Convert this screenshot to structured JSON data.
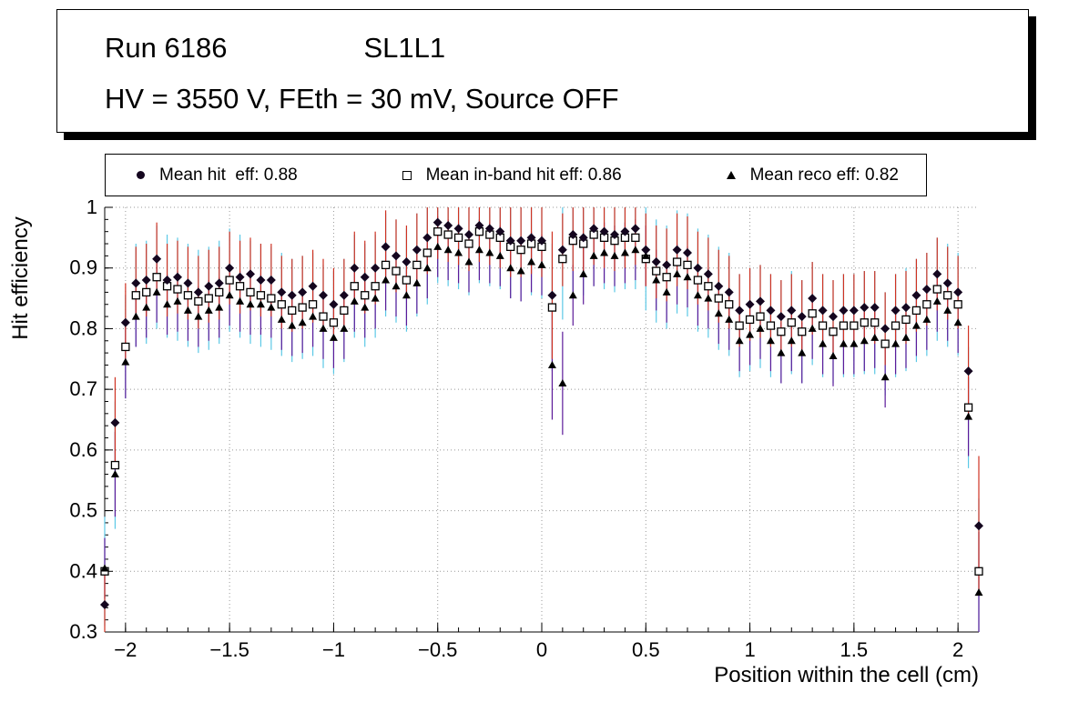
{
  "header": {
    "run": "Run 6186",
    "chamber": "SL1L1",
    "conditions": "HV = 3550 V, FEth = 30 mV, Source OFF"
  },
  "legend": [
    {
      "label": "Mean hit  eff: 0.88",
      "marker": "filled-circle",
      "color": "#14061f"
    },
    {
      "label": "Mean in-band hit eff: 0.86",
      "marker": "open-square",
      "color": "#000000"
    },
    {
      "label": "Mean reco eff: 0.82",
      "marker": "filled-triangle",
      "color": "#000000"
    }
  ],
  "chart_data": {
    "type": "scatter",
    "title": "",
    "xlabel": "Position within the cell (cm)",
    "ylabel": "Hit efficiency",
    "xlim": [
      -2.1,
      2.1
    ],
    "ylim": [
      0.3,
      1.0
    ],
    "grid": {
      "style": "dotted",
      "color": "#999999"
    },
    "xticks": {
      "major": [
        -2,
        -1.5,
        -1,
        -0.5,
        0,
        0.5,
        1,
        1.5,
        2
      ],
      "labels": [
        "−2",
        "−1.5",
        "−1",
        "−0.5",
        "0",
        "0.5",
        "1",
        "1.5",
        "2"
      ],
      "minor_step": 0.1
    },
    "yticks": {
      "major": [
        0.3,
        0.4,
        0.5,
        0.6,
        0.7,
        0.8,
        0.9,
        1.0
      ],
      "labels": [
        "0.3",
        "0.4",
        "0.5",
        "0.6",
        "0.7",
        "0.8",
        "0.9",
        "1"
      ],
      "minor_step": 0.02
    },
    "x": [
      -2.1,
      -2.05,
      -2,
      -1.95,
      -1.9,
      -1.85,
      -1.8,
      -1.75,
      -1.7,
      -1.65,
      -1.6,
      -1.55,
      -1.5,
      -1.45,
      -1.4,
      -1.35,
      -1.3,
      -1.25,
      -1.2,
      -1.15,
      -1.1,
      -1.05,
      -1,
      -0.95,
      -0.9,
      -0.85,
      -0.8,
      -0.75,
      -0.7,
      -0.65,
      -0.6,
      -0.55,
      -0.5,
      -0.45,
      -0.4,
      -0.35,
      -0.3,
      -0.25,
      -0.2,
      -0.15,
      -0.1,
      -0.05,
      0,
      0.05,
      0.1,
      0.15,
      0.2,
      0.25,
      0.3,
      0.35,
      0.4,
      0.45,
      0.5,
      0.55,
      0.6,
      0.65,
      0.7,
      0.75,
      0.8,
      0.85,
      0.9,
      0.95,
      1,
      1.05,
      1.1,
      1.15,
      1.2,
      1.25,
      1.3,
      1.35,
      1.4,
      1.45,
      1.5,
      1.55,
      1.6,
      1.65,
      1.7,
      1.75,
      1.8,
      1.85,
      1.9,
      1.95,
      2,
      2.05,
      2.1
    ],
    "series": [
      {
        "name": "hit-eff",
        "legend": "Mean hit  eff: 0.88",
        "mean": 0.88,
        "marker": "diamond",
        "marker_color": "#14061f",
        "error_color": "#cf3222",
        "y": [
          0.345,
          0.645,
          0.81,
          0.875,
          0.88,
          0.915,
          0.88,
          0.885,
          0.875,
          0.86,
          0.87,
          0.875,
          0.9,
          0.885,
          0.89,
          0.88,
          0.88,
          0.86,
          0.855,
          0.86,
          0.87,
          0.855,
          0.84,
          0.855,
          0.9,
          0.885,
          0.9,
          0.935,
          0.92,
          0.91,
          0.93,
          0.95,
          0.975,
          0.97,
          0.965,
          0.955,
          0.97,
          0.965,
          0.96,
          0.945,
          0.945,
          0.95,
          0.945,
          0.855,
          0.93,
          0.955,
          0.95,
          0.965,
          0.96,
          0.955,
          0.96,
          0.965,
          0.93,
          0.91,
          0.905,
          0.93,
          0.925,
          0.9,
          0.89,
          0.87,
          0.86,
          0.83,
          0.84,
          0.845,
          0.83,
          0.82,
          0.83,
          0.82,
          0.85,
          0.83,
          0.82,
          0.83,
          0.83,
          0.835,
          0.835,
          0.8,
          0.83,
          0.835,
          0.855,
          0.865,
          0.89,
          0.875,
          0.86,
          0.73,
          0.475
        ],
        "yerr": {
          "default": 0.06,
          "overrides": {
            "0": 0.055,
            "1": 0.075,
            "2": 0.065,
            "43": 0.105,
            "83": 0.075,
            "84": 0.115
          }
        }
      },
      {
        "name": "in-band-hit-eff",
        "legend": "Mean in-band hit eff: 0.86",
        "mean": 0.86,
        "marker": "open-square",
        "marker_color": "#000000",
        "error_color": "#5bc8e6",
        "y": [
          0.4,
          0.575,
          0.77,
          0.855,
          0.86,
          0.885,
          0.87,
          0.865,
          0.855,
          0.845,
          0.85,
          0.86,
          0.88,
          0.87,
          0.86,
          0.855,
          0.85,
          0.84,
          0.83,
          0.835,
          0.84,
          0.82,
          0.81,
          0.83,
          0.87,
          0.855,
          0.87,
          0.905,
          0.895,
          0.88,
          0.905,
          0.925,
          0.96,
          0.955,
          0.95,
          0.94,
          0.96,
          0.955,
          0.95,
          0.935,
          0.93,
          0.94,
          0.935,
          0.835,
          0.915,
          0.945,
          0.94,
          0.955,
          0.95,
          0.945,
          0.95,
          0.95,
          0.915,
          0.895,
          0.885,
          0.91,
          0.905,
          0.88,
          0.87,
          0.85,
          0.84,
          0.805,
          0.815,
          0.82,
          0.805,
          0.795,
          0.81,
          0.795,
          0.825,
          0.805,
          0.795,
          0.805,
          0.805,
          0.81,
          0.81,
          0.775,
          0.805,
          0.815,
          0.83,
          0.84,
          0.865,
          0.855,
          0.84,
          0.67,
          0.4
        ],
        "yerr": {
          "default": 0.085,
          "overrides": {
            "0": 0.09,
            "1": 0.105,
            "2": 0.085,
            "43": 0.105,
            "44": 0.1,
            "83": 0.1,
            "84": 0.12
          }
        }
      },
      {
        "name": "reco-eff",
        "legend": "Mean reco eff: 0.82",
        "mean": 0.82,
        "marker": "triangle",
        "marker_color": "#000000",
        "error_color": "#5c1a99",
        "y": [
          0.405,
          0.56,
          0.745,
          0.82,
          0.835,
          0.86,
          0.84,
          0.845,
          0.83,
          0.82,
          0.83,
          0.835,
          0.855,
          0.845,
          0.84,
          0.84,
          0.835,
          0.815,
          0.805,
          0.81,
          0.82,
          0.8,
          0.785,
          0.8,
          0.845,
          0.835,
          0.85,
          0.88,
          0.87,
          0.855,
          0.875,
          0.9,
          0.935,
          0.93,
          0.925,
          0.91,
          0.93,
          0.925,
          0.92,
          0.9,
          0.895,
          0.91,
          0.905,
          0.74,
          0.71,
          0.855,
          0.89,
          0.92,
          0.925,
          0.92,
          0.925,
          0.93,
          0.92,
          0.88,
          0.86,
          0.89,
          0.885,
          0.855,
          0.85,
          0.825,
          0.815,
          0.78,
          0.79,
          0.8,
          0.78,
          0.76,
          0.78,
          0.76,
          0.8,
          0.775,
          0.755,
          0.775,
          0.775,
          0.78,
          0.785,
          0.72,
          0.775,
          0.785,
          0.805,
          0.815,
          0.845,
          0.83,
          0.81,
          0.655,
          0.365
        ],
        "yerr": {
          "default": 0.05,
          "overrides": {
            "1": 0.07,
            "2": 0.06,
            "43": 0.09,
            "44": 0.085,
            "83": 0.065,
            "84": 0.1
          }
        }
      }
    ]
  }
}
